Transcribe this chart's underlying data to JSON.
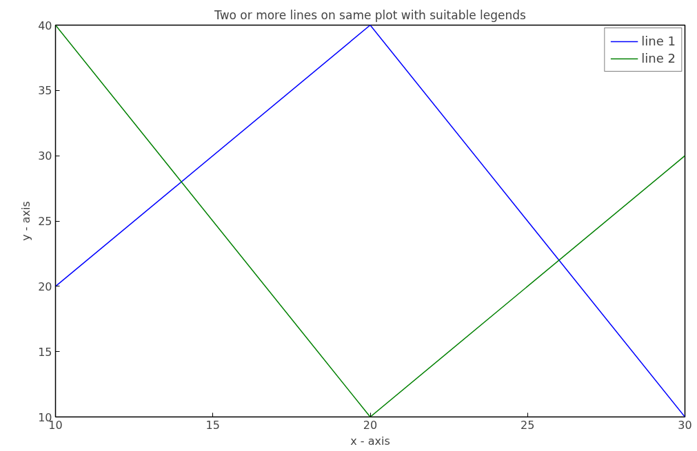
{
  "chart_data": {
    "type": "line",
    "title": "Two or more lines on same plot with suitable legends",
    "xlabel": "x - axis",
    "ylabel": "y - axis",
    "x": [
      10,
      20,
      30
    ],
    "series": [
      {
        "name": "line 1",
        "color": "#0000ff",
        "values": [
          20,
          40,
          10
        ]
      },
      {
        "name": "line 2",
        "color": "#008000",
        "values": [
          40,
          10,
          30
        ]
      }
    ],
    "xlim": [
      10,
      30
    ],
    "ylim": [
      10,
      40
    ],
    "xticks": [
      10,
      15,
      20,
      25,
      30
    ],
    "yticks": [
      10,
      15,
      20,
      25,
      30,
      35,
      40
    ],
    "grid": false,
    "legend": "top right",
    "marker": "none",
    "line_style": "solid"
  }
}
